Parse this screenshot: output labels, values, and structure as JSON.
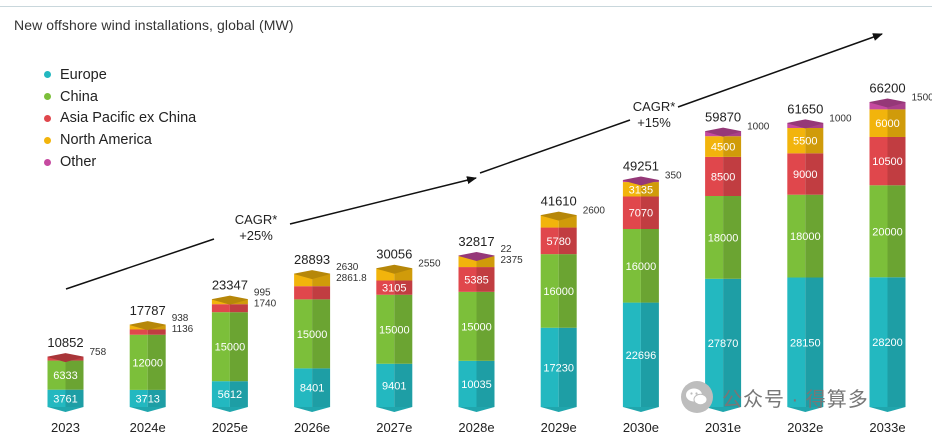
{
  "title": "New offshore wind installations, global (MW)",
  "colors": {
    "Europe": "#23b8c0",
    "China": "#7cbf3a",
    "Asia Pacific ex China": "#e0474c",
    "North America": "#f2b40c",
    "Other": "#c64aa0"
  },
  "legend": [
    {
      "label": "Europe",
      "color": "#23b8c0"
    },
    {
      "label": "China",
      "color": "#7cbf3a"
    },
    {
      "label": "Asia Pacific ex China",
      "color": "#e0474c"
    },
    {
      "label": "North America",
      "color": "#f2b40c"
    },
    {
      "label": "Other",
      "color": "#c64aa0"
    }
  ],
  "cagr": [
    {
      "line1": "CAGR*",
      "line2": "+25%"
    },
    {
      "line1": "CAGR*",
      "line2": "+15%"
    }
  ],
  "watermark": {
    "text": "公众号 · 得算多",
    "icon": "wechat-icon"
  },
  "chart_data": {
    "type": "bar",
    "stacked": true,
    "title": "New offshore wind installations, global (MW)",
    "xlabel": "",
    "ylabel": "",
    "ylim": [
      0,
      70000
    ],
    "categories": [
      "2023",
      "2024e",
      "2025e",
      "2026e",
      "2027e",
      "2028e",
      "2029e",
      "2030e",
      "2031e",
      "2032e",
      "2033e"
    ],
    "totals": [
      "10852",
      "17787",
      "23347",
      "28893",
      "30056",
      "32817",
      "41610",
      "49251",
      "59870",
      "61650",
      "66200"
    ],
    "series": [
      {
        "name": "Europe",
        "values": [
          3761,
          3713,
          5612,
          8401,
          9401,
          10035,
          17230,
          22696,
          27870,
          28150,
          28200
        ],
        "labels": [
          "3761",
          "3713",
          "5612",
          "8401",
          "9401",
          "10035",
          "17230",
          "22696",
          "27870",
          "28150",
          "28200"
        ]
      },
      {
        "name": "China",
        "values": [
          6333,
          12000,
          15000,
          15000,
          15000,
          15000,
          16000,
          16000,
          18000,
          18000,
          20000
        ],
        "labels": [
          "6333",
          "12000",
          "15000",
          "15000",
          "15000",
          "15000",
          "16000",
          "16000",
          "18000",
          "18000",
          "20000"
        ]
      },
      {
        "name": "Asia Pacific ex China",
        "values": [
          758,
          1136,
          1740,
          2861.8,
          3105,
          5385,
          5780,
          7070,
          8500,
          9000,
          10500
        ],
        "labels": [
          "",
          "",
          "",
          "",
          "3105",
          "5385",
          "5780",
          "7070",
          "8500",
          "9000",
          "10500"
        ]
      },
      {
        "name": "North America",
        "values": [
          0,
          938,
          995,
          2630,
          2550,
          2375,
          2600,
          3135,
          4500,
          5500,
          6000
        ],
        "labels": [
          "",
          "",
          "",
          "",
          "",
          "",
          "",
          "3135",
          "4500",
          "5500",
          "6000"
        ]
      },
      {
        "name": "Other",
        "values": [
          0,
          0,
          0,
          0,
          0,
          22,
          0,
          350,
          1000,
          1000,
          1500
        ],
        "labels": [
          "",
          "",
          "",
          "",
          "",
          "",
          "",
          "",
          "",
          "",
          ""
        ]
      }
    ],
    "side_labels": [
      [
        "758"
      ],
      [
        "938",
        "1136"
      ],
      [
        "995",
        "1740"
      ],
      [
        "2630",
        "2861.8"
      ],
      [
        "2550"
      ],
      [
        "22",
        "2375"
      ],
      [
        "2600"
      ],
      [
        "350"
      ],
      [
        "1000"
      ],
      [
        "1000"
      ],
      [
        "1500"
      ]
    ]
  }
}
